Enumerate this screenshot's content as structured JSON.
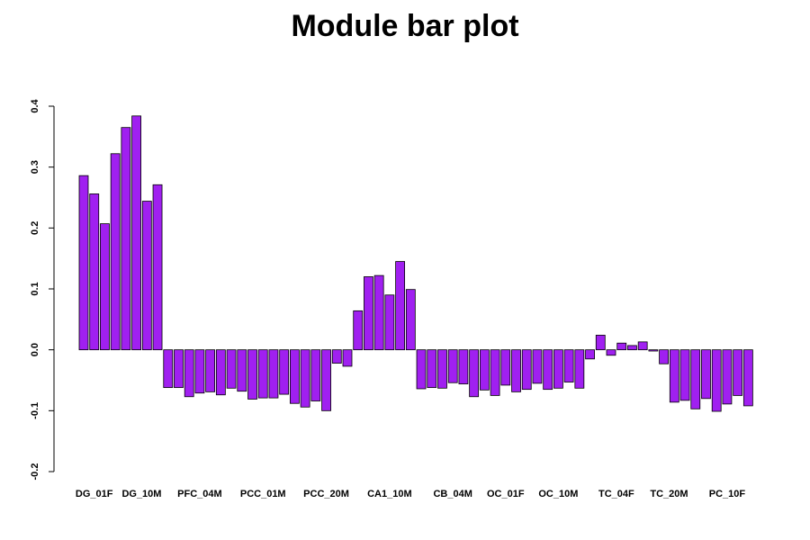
{
  "chart_data": {
    "type": "bar",
    "title": "Module bar plot",
    "xlabel": "",
    "ylabel": "",
    "ylim": [
      -0.2,
      0.4
    ],
    "yticks": [
      -0.2,
      -0.1,
      0.0,
      0.1,
      0.2,
      0.3,
      0.4
    ],
    "ytick_labels": [
      "-0.2",
      "-0.1",
      "0.0",
      "0.1",
      "0.2",
      "0.3",
      "0.4"
    ],
    "bar_color": "#a020f0",
    "grid": false,
    "legend": "none",
    "values": [
      0.286,
      0.256,
      0.207,
      0.322,
      0.365,
      0.384,
      0.244,
      0.271,
      -0.062,
      -0.062,
      -0.077,
      -0.071,
      -0.069,
      -0.074,
      -0.063,
      -0.068,
      -0.081,
      -0.079,
      -0.079,
      -0.073,
      -0.088,
      -0.094,
      -0.084,
      -0.1,
      -0.022,
      -0.027,
      0.064,
      0.12,
      0.122,
      0.09,
      0.145,
      0.099,
      -0.064,
      -0.062,
      -0.063,
      -0.054,
      -0.056,
      -0.077,
      -0.066,
      -0.075,
      -0.058,
      -0.069,
      -0.065,
      -0.055,
      -0.065,
      -0.063,
      -0.053,
      -0.063,
      -0.015,
      0.024,
      -0.009,
      0.011,
      0.007,
      0.013,
      -0.002,
      -0.023,
      -0.086,
      -0.083,
      -0.097,
      -0.08,
      -0.101,
      -0.089,
      -0.075,
      -0.092
    ],
    "category_labels": [
      {
        "label": "DG_01F",
        "index": 1
      },
      {
        "label": "DG_10M",
        "index": 5.5
      },
      {
        "label": "PFC_04M",
        "index": 11
      },
      {
        "label": "PCC_01M",
        "index": 17
      },
      {
        "label": "PCC_20M",
        "index": 23
      },
      {
        "label": "CA1_10M",
        "index": 29
      },
      {
        "label": "CB_04M",
        "index": 35
      },
      {
        "label": "OC_01F",
        "index": 40
      },
      {
        "label": "OC_10M",
        "index": 45
      },
      {
        "label": "TC_04F",
        "index": 50.5
      },
      {
        "label": "TC_20M",
        "index": 55.5
      },
      {
        "label": "PC_10F",
        "index": 61
      }
    ]
  }
}
